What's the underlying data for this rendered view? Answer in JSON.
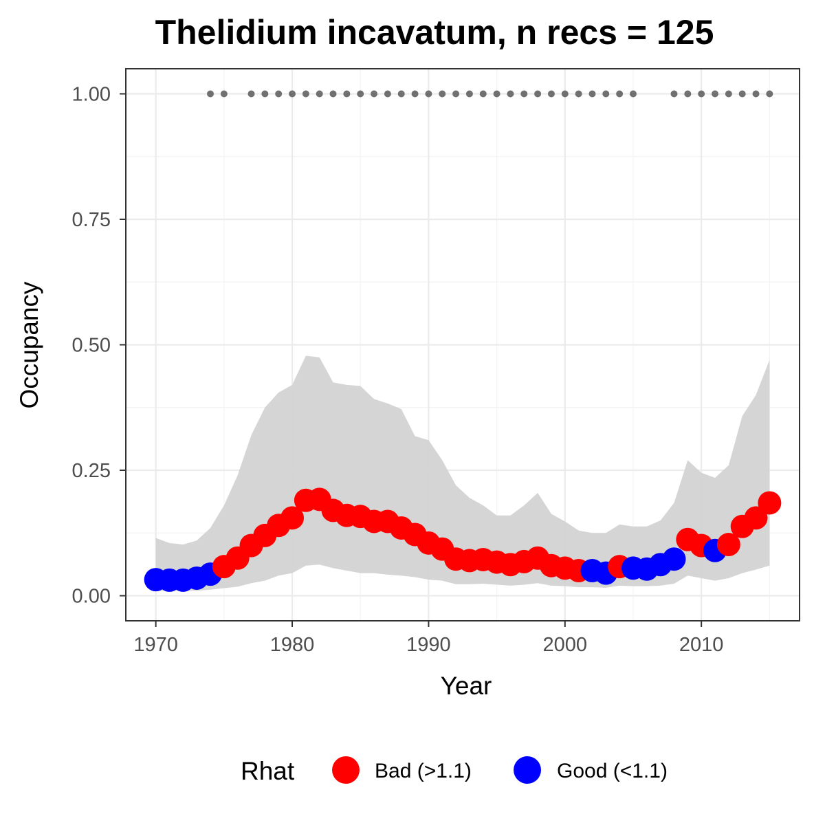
{
  "chart_data": {
    "type": "line",
    "title": "Thelidium incavatum, n recs = 125",
    "xlabel": "Year",
    "ylabel": "Occupancy",
    "xlim": [
      1967.8,
      2017.2
    ],
    "ylim": [
      -0.05,
      1.05
    ],
    "x_ticks": [
      1970,
      1980,
      1990,
      2000,
      2010
    ],
    "y_ticks": [
      0,
      0.25,
      0.5,
      0.75,
      1.0
    ],
    "x_tick_labels": [
      "1970",
      "1980",
      "1990",
      "2000",
      "2010"
    ],
    "y_tick_labels": [
      "0.00",
      "0.25",
      "0.50",
      "0.75",
      "1.00"
    ],
    "grid": true,
    "legend": {
      "title": "Rhat",
      "position": "bottom",
      "entries": [
        {
          "label": "Bad (>1.1)",
          "color": "#ff0000"
        },
        {
          "label": "Good (<1.1)",
          "color": "#0000ff"
        }
      ]
    },
    "ribbon_color": "#d3d3d3",
    "record_marker_color": "#707070",
    "years": [
      1970,
      1971,
      1972,
      1973,
      1974,
      1975,
      1976,
      1977,
      1978,
      1979,
      1980,
      1981,
      1982,
      1983,
      1984,
      1985,
      1986,
      1987,
      1988,
      1989,
      1990,
      1991,
      1992,
      1993,
      1994,
      1995,
      1996,
      1997,
      1998,
      1999,
      2000,
      2001,
      2002,
      2003,
      2004,
      2005,
      2006,
      2007,
      2008,
      2009,
      2010,
      2011,
      2012,
      2013,
      2014,
      2015
    ],
    "occupancy": [
      0.032,
      0.031,
      0.031,
      0.035,
      0.043,
      0.058,
      0.075,
      0.1,
      0.12,
      0.14,
      0.155,
      0.19,
      0.192,
      0.17,
      0.16,
      0.158,
      0.148,
      0.148,
      0.135,
      0.122,
      0.105,
      0.093,
      0.073,
      0.07,
      0.072,
      0.067,
      0.062,
      0.068,
      0.075,
      0.06,
      0.055,
      0.05,
      0.05,
      0.045,
      0.058,
      0.055,
      0.053,
      0.062,
      0.073,
      0.112,
      0.1,
      0.09,
      0.102,
      0.138,
      0.155,
      0.185
    ],
    "rhat": [
      "good",
      "good",
      "good",
      "good",
      "good",
      "bad",
      "bad",
      "bad",
      "bad",
      "bad",
      "bad",
      "bad",
      "bad",
      "bad",
      "bad",
      "bad",
      "bad",
      "bad",
      "bad",
      "bad",
      "bad",
      "bad",
      "bad",
      "bad",
      "bad",
      "bad",
      "bad",
      "bad",
      "bad",
      "bad",
      "bad",
      "bad",
      "good",
      "good",
      "bad",
      "good",
      "good",
      "good",
      "good",
      "bad",
      "bad",
      "good",
      "bad",
      "bad",
      "bad",
      "bad"
    ],
    "lower": [
      0.01,
      0.01,
      0.01,
      0.01,
      0.012,
      0.015,
      0.018,
      0.025,
      0.03,
      0.04,
      0.045,
      0.06,
      0.062,
      0.055,
      0.05,
      0.045,
      0.045,
      0.042,
      0.04,
      0.037,
      0.032,
      0.03,
      0.023,
      0.023,
      0.024,
      0.022,
      0.02,
      0.022,
      0.025,
      0.02,
      0.019,
      0.017,
      0.017,
      0.016,
      0.02,
      0.019,
      0.019,
      0.02,
      0.024,
      0.04,
      0.035,
      0.03,
      0.035,
      0.045,
      0.052,
      0.06
    ],
    "upper": [
      0.115,
      0.105,
      0.102,
      0.11,
      0.135,
      0.18,
      0.24,
      0.32,
      0.375,
      0.405,
      0.42,
      0.478,
      0.475,
      0.425,
      0.42,
      0.418,
      0.392,
      0.383,
      0.372,
      0.318,
      0.31,
      0.27,
      0.22,
      0.195,
      0.18,
      0.16,
      0.16,
      0.18,
      0.205,
      0.163,
      0.148,
      0.13,
      0.125,
      0.125,
      0.142,
      0.138,
      0.138,
      0.15,
      0.185,
      0.27,
      0.245,
      0.235,
      0.26,
      0.358,
      0.4,
      0.47
    ],
    "record_years": [
      1974,
      1975,
      1977,
      1978,
      1979,
      1980,
      1981,
      1982,
      1983,
      1984,
      1985,
      1986,
      1987,
      1988,
      1989,
      1990,
      1991,
      1992,
      1993,
      1994,
      1995,
      1996,
      1997,
      1998,
      1999,
      2000,
      2001,
      2002,
      2003,
      2004,
      2005,
      2008,
      2009,
      2010,
      2011,
      2012,
      2013,
      2014,
      2015
    ],
    "record_value": 1.0
  }
}
